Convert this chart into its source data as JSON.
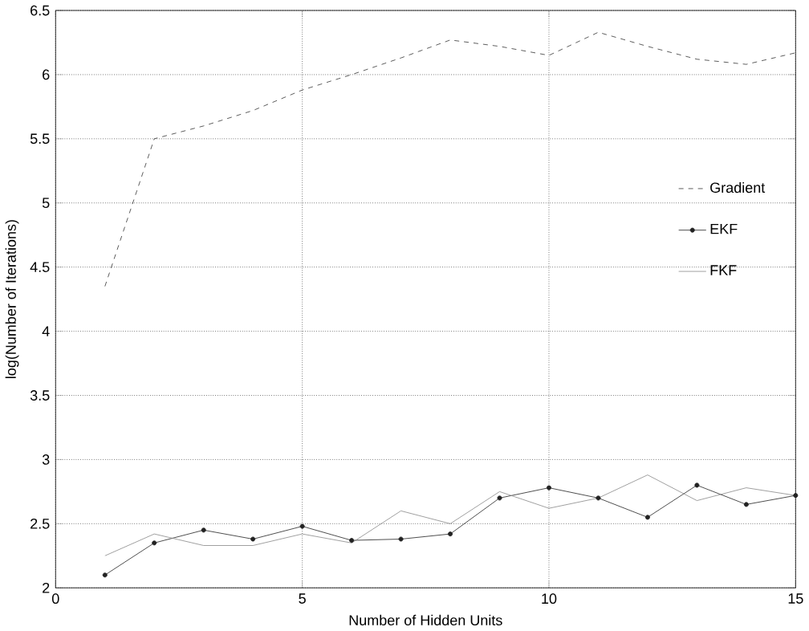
{
  "chart_data": {
    "type": "line",
    "xlabel": "Number of Hidden Units",
    "ylabel": "log(Number of Iterations)",
    "x": [
      1,
      2,
      3,
      4,
      5,
      6,
      7,
      8,
      9,
      10,
      11,
      12,
      13,
      14,
      15
    ],
    "series": [
      {
        "name": "Gradient",
        "color": "#333333",
        "line_style": "dashed",
        "marker": "none",
        "values": [
          4.35,
          5.5,
          5.6,
          5.72,
          5.88,
          6.0,
          6.13,
          6.27,
          6.22,
          6.15,
          6.33,
          6.22,
          6.12,
          6.08,
          6.17
        ]
      },
      {
        "name": "EKF",
        "color": "#222222",
        "line_style": "solid",
        "marker": "circle",
        "values": [
          2.1,
          2.35,
          2.45,
          2.38,
          2.48,
          2.37,
          2.38,
          2.42,
          2.7,
          2.78,
          2.7,
          2.55,
          2.8,
          2.65,
          2.72
        ]
      },
      {
        "name": "FKF",
        "color": "#888888",
        "line_style": "solid",
        "marker": "none",
        "values": [
          2.25,
          2.42,
          2.33,
          2.33,
          2.42,
          2.35,
          2.6,
          2.5,
          2.75,
          2.62,
          2.7,
          2.88,
          2.68,
          2.78,
          2.72
        ]
      }
    ],
    "xlim": [
      0,
      15
    ],
    "ylim": [
      2,
      6.5
    ],
    "xticks": [
      0,
      5,
      10,
      15
    ],
    "yticks": [
      2,
      2.5,
      3,
      3.5,
      4,
      4.5,
      5,
      5.5,
      6,
      6.5
    ],
    "grid": true,
    "legend": "right"
  }
}
